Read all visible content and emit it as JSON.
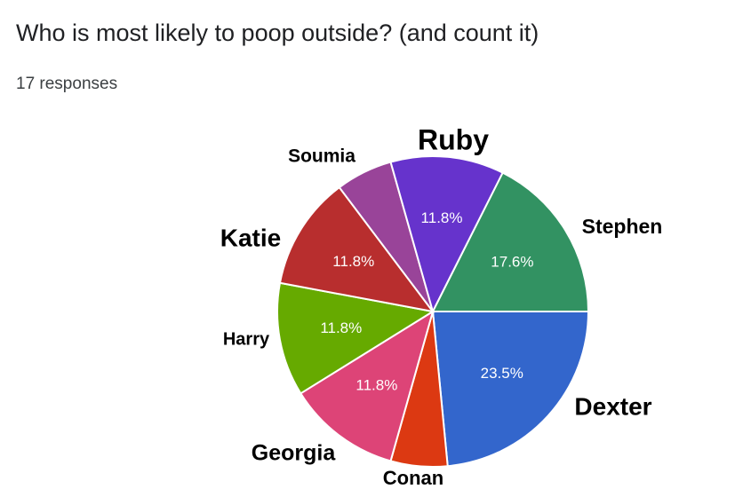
{
  "chart_data": {
    "type": "pie",
    "title": "Who is most likely to poop outside? (and count it)",
    "subtitle": "17 responses",
    "categories": [
      "Dexter",
      "Conan",
      "Georgia",
      "Harry",
      "Katie",
      "Soumia",
      "Ruby",
      "Stephen"
    ],
    "values": [
      23.5,
      5.9,
      11.8,
      11.8,
      11.8,
      5.9,
      11.8,
      17.6
    ],
    "value_labels": [
      "23.5%",
      null,
      "11.8%",
      "11.8%",
      "11.8%",
      null,
      "11.8%",
      "17.6%"
    ],
    "colors": [
      "#3366cc",
      "#dc3912",
      "#dd4477",
      "#66aa00",
      "#b82e2e",
      "#994499",
      "#6633cc",
      "#329262"
    ]
  }
}
